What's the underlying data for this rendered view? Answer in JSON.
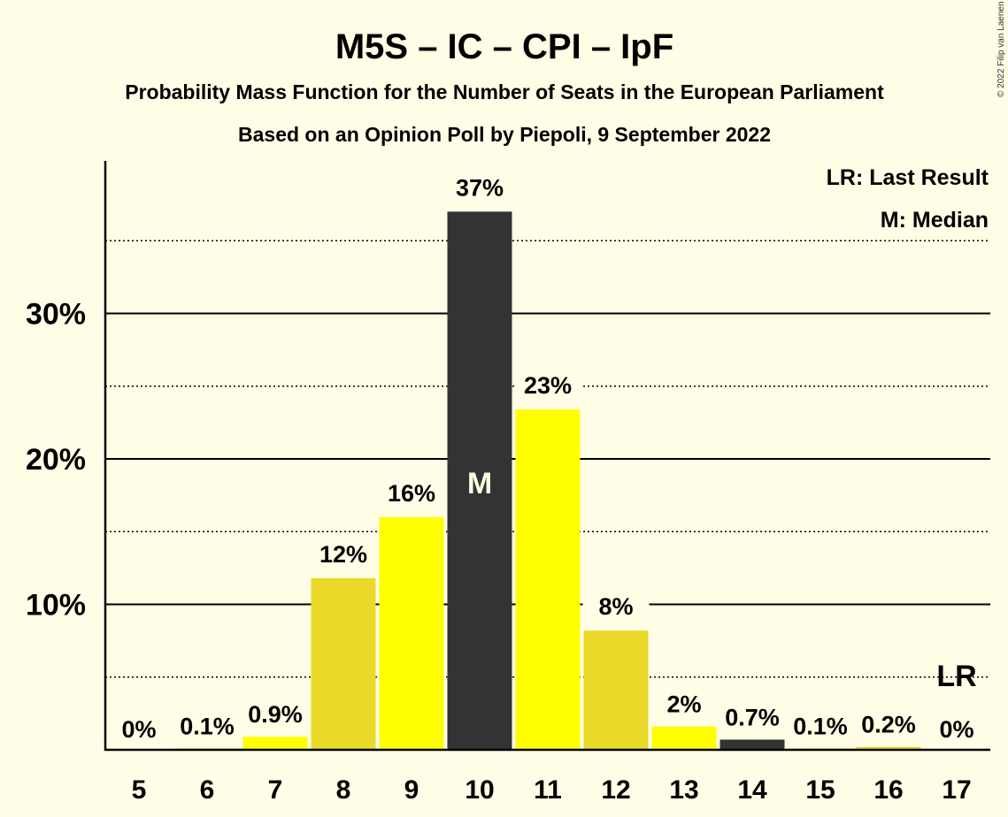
{
  "colors": {
    "background": "#FFFDE6",
    "bar_bright": "#FFFF00",
    "bar_dim": "#EBDA2A",
    "bar_dark": "#333333"
  },
  "copyright": "© 2022 Filip van Laenen",
  "chart_data": {
    "type": "bar",
    "title": "M5S – IC – CPI – IpF",
    "subtitle_1": "Probability Mass Function for the Number of Seats in the European Parliament",
    "subtitle_2": "Based on an Opinion Poll by Piepoli, 9 September 2022",
    "xlabel": "",
    "ylabel": "",
    "categories": [
      "5",
      "6",
      "7",
      "8",
      "9",
      "10",
      "11",
      "12",
      "13",
      "14",
      "15",
      "16",
      "17"
    ],
    "values": [
      0,
      0.1,
      0.9,
      11.8,
      16.0,
      37.0,
      23.4,
      8.2,
      1.6,
      0.7,
      0.1,
      0.2,
      0
    ],
    "data_labels": [
      "0%",
      "0.1%",
      "0.9%",
      "12%",
      "16%",
      "37%",
      "23%",
      "8%",
      "2%",
      "0.7%",
      "0.1%",
      "0.2%",
      "0%"
    ],
    "bar_colors": [
      "#FFFF00",
      "#FFFF00",
      "#FFFF00",
      "#EBDA2A",
      "#FFFF00",
      "#333333",
      "#FFFF00",
      "#EBDA2A",
      "#FFFF00",
      "#333333",
      "#FFFF00",
      "#EBDA2A",
      "#FFFF00"
    ],
    "ylim": [
      0,
      40
    ],
    "y_ticks": [
      10,
      20,
      30
    ],
    "y_tick_labels": [
      "10%",
      "20%",
      "30%"
    ],
    "minor_gridlines": [
      5,
      15,
      25,
      35
    ],
    "median": {
      "category": "10",
      "label": "M"
    },
    "last_result": {
      "category": "17",
      "label": "LR"
    },
    "legend": [
      "LR: Last Result",
      "M: Median"
    ],
    "legend_position": "top-right"
  }
}
